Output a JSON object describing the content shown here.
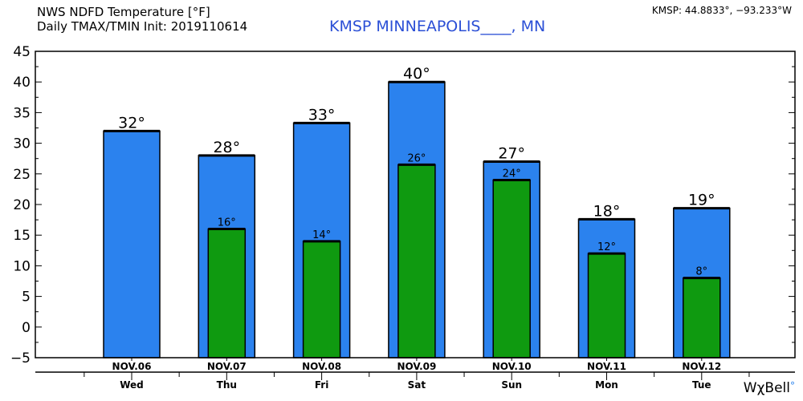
{
  "header": {
    "line1": "NWS NDFD Temperature [°F]",
    "line2": "Daily TMAX/TMIN Init: 2019110614",
    "station": "KMSP MINNEAPOLIS____, MN",
    "coords": "KMSP: 44.8833°, −93.233°W",
    "brand": "WχBell",
    "brand_dot": "°"
  },
  "colors": {
    "tmax": "#2b82ee",
    "tmin": "#0f9a10",
    "outline": "#000000"
  },
  "chart_data": {
    "type": "bar",
    "categories": [
      "NOV.06",
      "NOV.07",
      "NOV.08",
      "NOV.09",
      "NOV.10",
      "NOV.11",
      "NOV.12"
    ],
    "weekdays": [
      "Wed",
      "Thu",
      "Fri",
      "Sat",
      "Sun",
      "Mon",
      "Tue"
    ],
    "series": [
      {
        "values": [
          32,
          28,
          33.3,
          40,
          27,
          17.6,
          19.4
        ],
        "labels": [
          "32°",
          "28°",
          "33°",
          "40°",
          "27°",
          "18°",
          "19°"
        ]
      },
      {
        "values": [
          null,
          16,
          14,
          26.5,
          24,
          12,
          8
        ],
        "labels": [
          "",
          "16°",
          "14°",
          "26°",
          "24°",
          "12°",
          "8°"
        ]
      }
    ],
    "yticks": [
      "−5",
      "0",
      "5",
      "10",
      "15",
      "20",
      "25",
      "30",
      "35",
      "40",
      "45"
    ],
    "ylim": [
      -5,
      45
    ],
    "grid": false
  }
}
